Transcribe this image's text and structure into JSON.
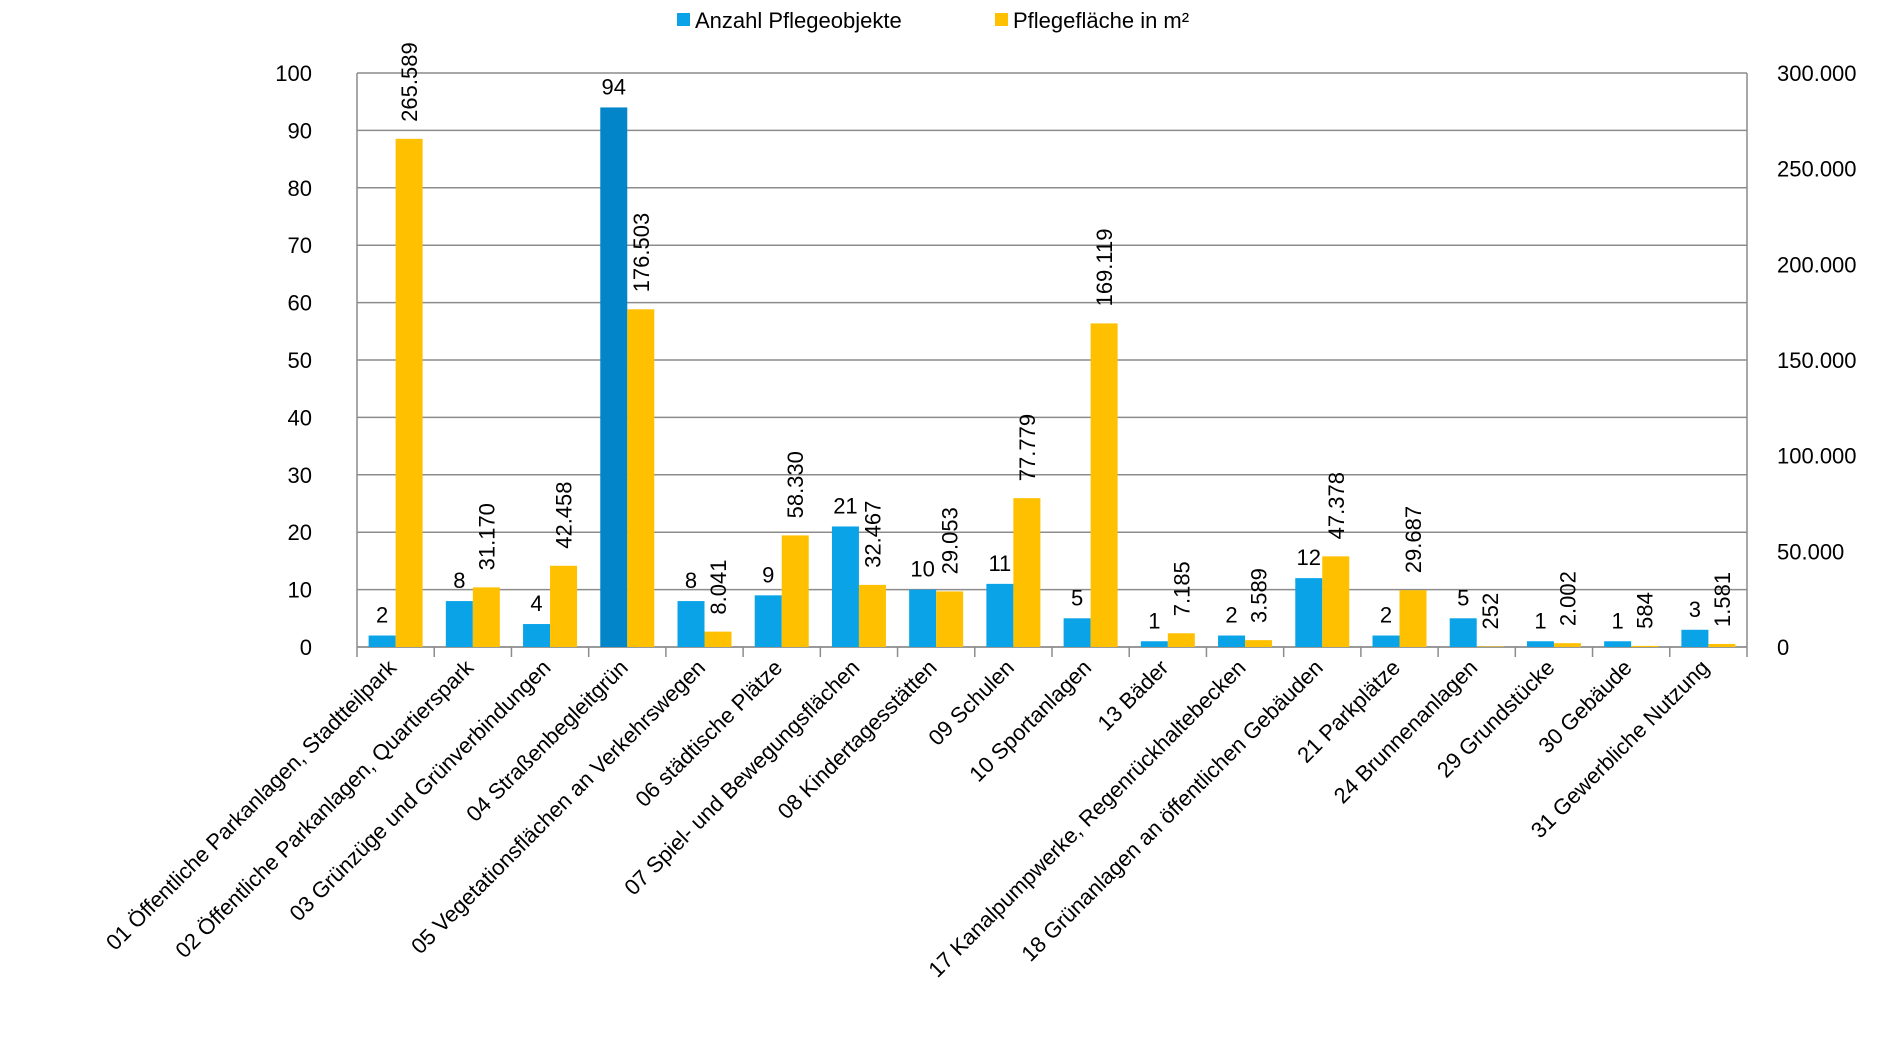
{
  "chart_data": {
    "type": "bar",
    "title": "",
    "legend_position": "top-center",
    "grid": true,
    "categories": [
      "01  Öffentliche Parkanlagen, Stadtteilpark",
      "02  Öffentliche Parkanlagen, Quartierspark",
      "03  Grünzüge und Grünverbindungen",
      "04  Straßenbegleitgrün",
      "05  Vegetationsflächen an Verkehrswegen",
      "06  städtische Plätze",
      "07  Spiel- und Bewegungsflächen",
      "08  Kindertagesstätten",
      "09  Schulen",
      "10  Sportanlagen",
      "13  Bäder",
      "17  Kanalpumpwerke, Regenrückhaltebecken",
      "18  Grünanlagen an öffentlichen Gebäuden",
      "21  Parkplätze",
      "24  Brunnenanlagen",
      "29  Grundstücke",
      "30  Gebäude",
      "31  Gewerbliche Nutzung"
    ],
    "series": [
      {
        "name": "Anzahl Pflegeobjekte",
        "axis": "left",
        "color": "#0AA3E8",
        "highlight_color": "#0385C9",
        "highlight_index": 3,
        "values": [
          2,
          8,
          4,
          94,
          8,
          9,
          21,
          10,
          11,
          5,
          1,
          2,
          12,
          2,
          5,
          1,
          1,
          3
        ],
        "labels": [
          "2",
          "8",
          "4",
          "94",
          "8",
          "9",
          "21",
          "10",
          "11",
          "5",
          "1",
          "2",
          "12",
          "2",
          "5",
          "1",
          "1",
          "3"
        ]
      },
      {
        "name": "Pflegefläche in m²",
        "axis": "right",
        "color": "#FFC000",
        "values": [
          265589,
          31170,
          42458,
          176503,
          8041,
          58330,
          32467,
          29053,
          77779,
          169119,
          7185,
          3589,
          47378,
          29687,
          252,
          2002,
          584,
          1581
        ],
        "labels": [
          "265.589",
          "31.170",
          "42.458",
          "176.503",
          "8.041",
          "58.330",
          "32.467",
          "29.053",
          "77.779",
          "169.119",
          "7.185",
          "3.589",
          "47.378",
          "29.687",
          "252",
          "2.002",
          "584",
          "1.581"
        ]
      }
    ],
    "y_left": {
      "range": [
        0,
        100
      ],
      "ticks": [
        "0",
        "10",
        "20",
        "30",
        "40",
        "50",
        "60",
        "70",
        "80",
        "90",
        "100"
      ]
    },
    "y_right": {
      "range": [
        0,
        300000
      ],
      "ticks": [
        "0",
        "50.000",
        "100.000",
        "150.000",
        "200.000",
        "250.000",
        "300.000"
      ]
    }
  }
}
